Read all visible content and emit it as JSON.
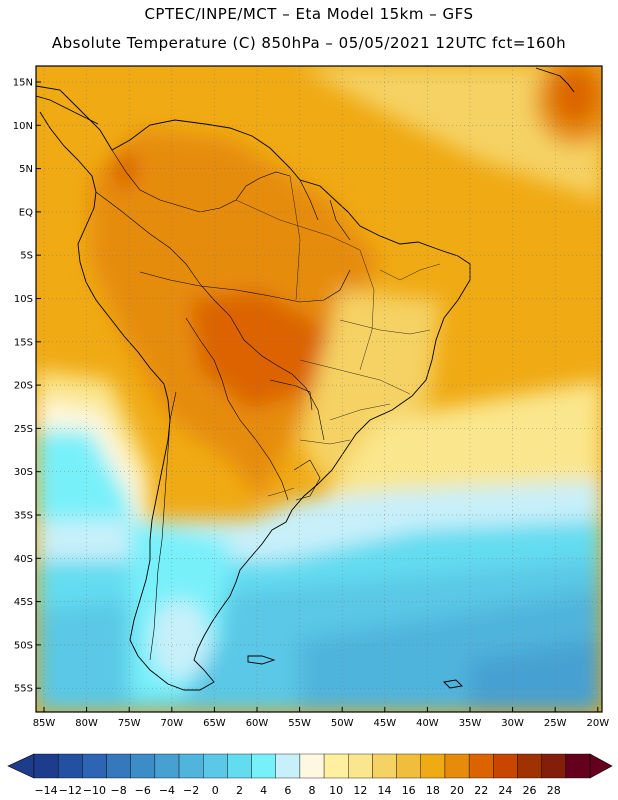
{
  "header": {
    "line1": "CPTEC/INPE/MCT –  Eta Model 15km – GFS",
    "line2": "Absolute Temperature (C) 850hPa – 05/05/2021 12UTC fct=160h"
  },
  "map": {
    "lat_labels": [
      "15N",
      "10N",
      "5N",
      "EQ",
      "5S",
      "10S",
      "15S",
      "20S",
      "25S",
      "30S",
      "35S",
      "40S",
      "45S",
      "50S",
      "55S"
    ],
    "lon_labels": [
      "85W",
      "80W",
      "75W",
      "70W",
      "65W",
      "60W",
      "55W",
      "50W",
      "45W",
      "40W",
      "35W",
      "30W",
      "25W",
      "20W"
    ],
    "grid": "dotted"
  },
  "colorbar": {
    "labels": [
      "-14",
      "-12",
      "-10",
      "-8",
      "-6",
      "-4",
      "-2",
      "0",
      "2",
      "4",
      "6",
      "8",
      "10",
      "12",
      "14",
      "16",
      "18",
      "20",
      "22",
      "24",
      "26",
      "28"
    ],
    "colors": [
      "#1e3c8c",
      "#2350a0",
      "#2d64b4",
      "#3578bc",
      "#3c8cc8",
      "#46a0d2",
      "#50b4dc",
      "#5ac8e6",
      "#64dcf0",
      "#78f0fa",
      "#c8f0fa",
      "#fff8e0",
      "#fff0a0",
      "#fae68c",
      "#f5d264",
      "#f0be3c",
      "#f0aa14",
      "#e68c0a",
      "#dc6400",
      "#c84600",
      "#a03200",
      "#821e0a",
      "#64001e"
    ],
    "low_arrow_color": "#1e3c8c",
    "high_arrow_color": "#64001e"
  }
}
